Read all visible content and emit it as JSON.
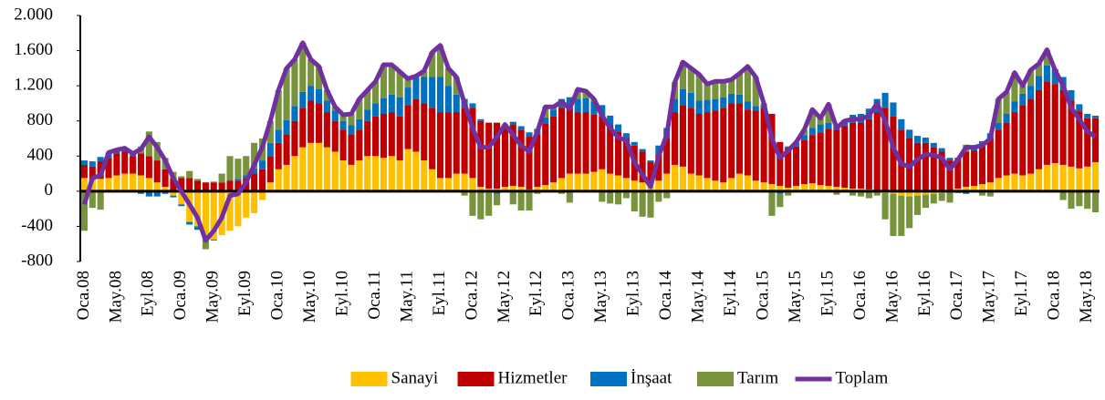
{
  "chart_data": {
    "type": "bar",
    "categories": [
      "Oca.08",
      null,
      null,
      null,
      "May.08",
      null,
      null,
      null,
      "Eyl.08",
      null,
      null,
      null,
      "Oca.09",
      null,
      null,
      null,
      "May.09",
      null,
      null,
      null,
      "Eyl.09",
      null,
      null,
      null,
      "Oca.10",
      null,
      null,
      null,
      "May.10",
      null,
      null,
      null,
      "Eyl.10",
      null,
      null,
      null,
      "Oca.11",
      null,
      null,
      null,
      "May.11",
      null,
      null,
      null,
      "Eyl.11",
      null,
      null,
      null,
      "Oca.12",
      null,
      null,
      null,
      "May.12",
      null,
      null,
      null,
      "Eyl.12",
      null,
      null,
      null,
      "Oca.13",
      null,
      null,
      null,
      "May.13",
      null,
      null,
      null,
      "Eyl.13",
      null,
      null,
      null,
      "Oca.14",
      null,
      null,
      null,
      "May.14",
      null,
      null,
      null,
      "Eyl.14",
      null,
      null,
      null,
      "Oca.15",
      null,
      null,
      null,
      "May.15",
      null,
      null,
      null,
      "Eyl.15",
      null,
      null,
      null,
      "Oca.16",
      null,
      null,
      null,
      "May.16",
      null,
      null,
      null,
      "Eyl.16",
      null,
      null,
      null,
      "Oca.17",
      null,
      null,
      null,
      "May.17",
      null,
      null,
      null,
      "Eyl.17",
      null,
      null,
      null,
      "Oca.18",
      null,
      null,
      null,
      "May.18",
      null
    ],
    "series": [
      {
        "name": "Sanayi",
        "type": "bar",
        "color": "#FFC000",
        "values": [
          150,
          130,
          140,
          150,
          180,
          200,
          200,
          180,
          150,
          100,
          50,
          -50,
          -150,
          -350,
          -400,
          -500,
          -550,
          -500,
          -450,
          -400,
          -300,
          -250,
          -100,
          100,
          250,
          300,
          400,
          500,
          550,
          550,
          500,
          450,
          350,
          300,
          350,
          400,
          400,
          380,
          400,
          350,
          480,
          450,
          350,
          250,
          150,
          150,
          200,
          200,
          150,
          50,
          30,
          30,
          50,
          60,
          50,
          20,
          50,
          70,
          100,
          150,
          200,
          200,
          200,
          220,
          250,
          200,
          180,
          150,
          120,
          100,
          80,
          120,
          200,
          300,
          280,
          200,
          180,
          150,
          120,
          100,
          150,
          200,
          180,
          120,
          100,
          80,
          60,
          40,
          60,
          80,
          90,
          70,
          60,
          50,
          40,
          30,
          30,
          20,
          -10,
          -20,
          -30,
          -50,
          -60,
          -50,
          -40,
          -30,
          -20,
          0,
          30,
          50,
          60,
          80,
          100,
          150,
          180,
          200,
          180,
          200,
          250,
          300,
          320,
          300,
          280,
          260,
          280,
          330
        ]
      },
      {
        "name": "Hizmetler",
        "type": "bar",
        "color": "#C00000",
        "values": [
          150,
          150,
          200,
          230,
          250,
          250,
          200,
          250,
          250,
          250,
          200,
          150,
          150,
          150,
          120,
          100,
          100,
          100,
          120,
          120,
          150,
          200,
          250,
          300,
          300,
          350,
          400,
          450,
          480,
          450,
          400,
          350,
          350,
          350,
          350,
          400,
          450,
          500,
          500,
          500,
          500,
          600,
          650,
          700,
          750,
          750,
          700,
          750,
          800,
          750,
          750,
          750,
          700,
          700,
          650,
          600,
          600,
          700,
          750,
          800,
          750,
          700,
          700,
          650,
          600,
          550,
          500,
          450,
          400,
          350,
          250,
          300,
          400,
          600,
          700,
          750,
          700,
          750,
          800,
          850,
          850,
          800,
          750,
          800,
          850,
          800,
          500,
          450,
          450,
          500,
          550,
          600,
          650,
          650,
          700,
          750,
          750,
          800,
          900,
          950,
          850,
          700,
          600,
          550,
          550,
          500,
          450,
          350,
          350,
          400,
          400,
          450,
          500,
          550,
          600,
          700,
          800,
          850,
          900,
          950,
          900,
          850,
          750,
          650,
          550,
          500
        ]
      },
      {
        "name": "İnşaat",
        "type": "bar",
        "color": "#0070C0",
        "values": [
          50,
          60,
          50,
          40,
          40,
          30,
          20,
          -30,
          -60,
          -60,
          -30,
          -20,
          -20,
          -30,
          -40,
          -20,
          -10,
          0,
          10,
          20,
          30,
          60,
          100,
          150,
          150,
          160,
          170,
          180,
          170,
          160,
          130,
          120,
          100,
          100,
          120,
          130,
          150,
          180,
          200,
          220,
          200,
          250,
          300,
          350,
          400,
          300,
          200,
          100,
          50,
          20,
          -20,
          -30,
          0,
          30,
          40,
          50,
          60,
          70,
          80,
          100,
          120,
          150,
          160,
          150,
          130,
          110,
          80,
          60,
          40,
          30,
          20,
          100,
          120,
          150,
          180,
          170,
          150,
          140,
          130,
          120,
          110,
          100,
          90,
          50,
          30,
          -20,
          -30,
          20,
          40,
          60,
          80,
          90,
          70,
          60,
          70,
          90,
          100,
          120,
          150,
          170,
          160,
          120,
          100,
          80,
          60,
          50,
          40,
          30,
          -20,
          -30,
          20,
          40,
          60,
          80,
          100,
          120,
          130,
          150,
          160,
          180,
          170,
          150,
          120,
          80,
          50,
          30
        ]
      },
      {
        "name": "Tarım",
        "type": "bar",
        "color": "#77933C",
        "values": [
          -450,
          -190,
          -210,
          20,
          0,
          10,
          10,
          80,
          280,
          210,
          130,
          70,
          20,
          80,
          20,
          -140,
          10,
          100,
          270,
          230,
          220,
          290,
          250,
          250,
          450,
          590,
          530,
          560,
          300,
          260,
          120,
          40,
          70,
          130,
          230,
          220,
          250,
          380,
          340,
          290,
          100,
          10,
          70,
          280,
          360,
          200,
          200,
          -50,
          -280,
          -320,
          -260,
          -130,
          10,
          -150,
          -220,
          -220,
          -30,
          120,
          30,
          -30,
          -130,
          110,
          80,
          30,
          -120,
          -140,
          -150,
          -80,
          -230,
          -290,
          -300,
          -120,
          -80,
          190,
          310,
          280,
          300,
          180,
          200,
          180,
          160,
          240,
          400,
          330,
          20,
          -260,
          -150,
          -50,
          10,
          60,
          210,
          70,
          210,
          -40,
          -10,
          -50,
          -60,
          -80,
          -40,
          -300,
          -480,
          -460,
          -360,
          -220,
          -150,
          -110,
          -90,
          -130,
          0,
          80,
          20,
          -50,
          -60,
          270,
          250,
          330,
          90,
          180,
          140,
          180,
          -10,
          -100,
          -200,
          -170,
          -200,
          -240
        ]
      },
      {
        "name": "Toplam",
        "type": "line",
        "color": "#7030A0",
        "values": [
          -150,
          150,
          180,
          440,
          470,
          490,
          430,
          480,
          620,
          500,
          350,
          150,
          0,
          -150,
          -300,
          -560,
          -450,
          -300,
          -50,
          -30,
          100,
          300,
          500,
          800,
          1150,
          1400,
          1500,
          1690,
          1500,
          1420,
          1150,
          960,
          870,
          880,
          1050,
          1150,
          1250,
          1440,
          1440,
          1360,
          1280,
          1310,
          1370,
          1580,
          1660,
          1400,
          1300,
          1000,
          720,
          500,
          500,
          620,
          760,
          640,
          520,
          450,
          680,
          960,
          960,
          1020,
          940,
          1160,
          1140,
          1050,
          860,
          720,
          610,
          580,
          330,
          190,
          50,
          400,
          640,
          1240,
          1470,
          1400,
          1330,
          1220,
          1250,
          1250,
          1270,
          1340,
          1420,
          1300,
          1000,
          600,
          380,
          460,
          560,
          700,
          930,
          830,
          990,
          720,
          800,
          820,
          820,
          860,
          1000,
          800,
          500,
          310,
          280,
          360,
          420,
          410,
          380,
          250,
          360,
          500,
          500,
          520,
          600,
          1050,
          1130,
          1350,
          1200,
          1380,
          1450,
          1610,
          1380,
          1200,
          950,
          820,
          680,
          620
        ]
      }
    ],
    "ylim": [
      -800,
      2000
    ],
    "yticks": [
      -800,
      -400,
      0,
      400,
      800,
      {
        "value": 1200,
        "label": "1.200"
      },
      {
        "value": 1600,
        "label": "1.600"
      },
      {
        "value": 2000,
        "label": "2.000"
      }
    ],
    "grid": false,
    "legend": "bottom"
  }
}
